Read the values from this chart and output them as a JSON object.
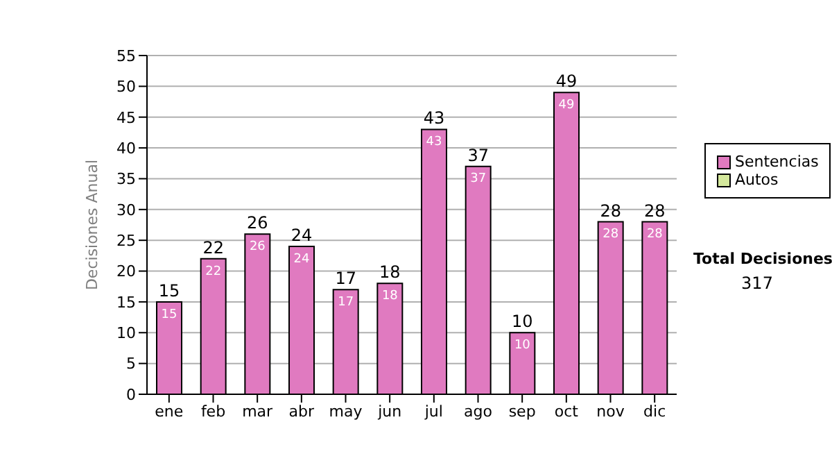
{
  "chart_data": {
    "type": "bar",
    "ylabel": "Decisiones Anual",
    "categories": [
      "ene",
      "feb",
      "mar",
      "abr",
      "may",
      "jun",
      "jul",
      "ago",
      "sep",
      "oct",
      "nov",
      "dic"
    ],
    "series": [
      {
        "name": "Sentencias",
        "color": "#e07ac0",
        "values": [
          15,
          22,
          26,
          24,
          17,
          18,
          43,
          37,
          10,
          49,
          28,
          28
        ]
      },
      {
        "name": "Autos",
        "color": "#d4e89c",
        "values": [
          null,
          null,
          null,
          null,
          null,
          null,
          null,
          null,
          null,
          null,
          null,
          null
        ]
      }
    ],
    "stacked": true,
    "data_labels": true,
    "totals": [
      "15",
      "22",
      "26",
      "24",
      "17",
      "18",
      "43",
      "37",
      "10",
      "49",
      "28",
      "28"
    ],
    "ylim": [
      0,
      55
    ],
    "yticks": [
      0,
      5,
      10,
      15,
      20,
      25,
      30,
      35,
      40,
      45,
      50,
      55
    ],
    "grid": "y",
    "legend": "right",
    "annotations": [
      "Total Decisiones",
      "317"
    ]
  }
}
